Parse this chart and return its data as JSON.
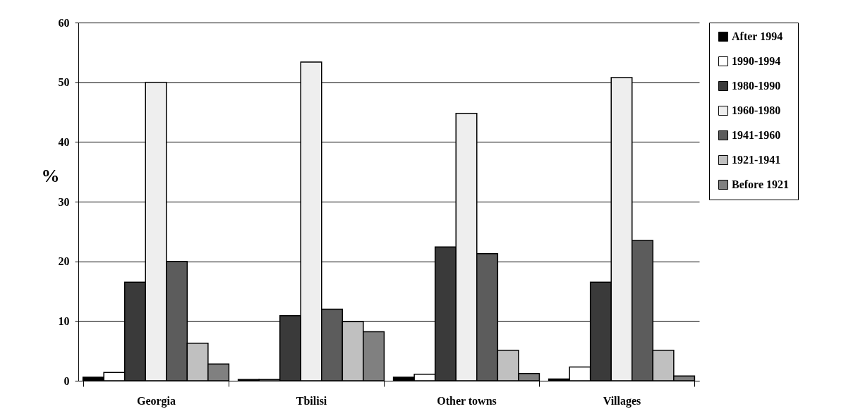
{
  "chart_data": {
    "type": "bar",
    "ylabel": "%",
    "categories": [
      "Georgia",
      "Tbilisi",
      "Other towns",
      "Villages"
    ],
    "series": [
      {
        "name": "After 1994",
        "color": "#000000",
        "values": [
          0.6,
          0.2,
          0.6,
          0.3
        ]
      },
      {
        "name": "1990-1994",
        "color": "#ffffff",
        "values": [
          1.4,
          0.2,
          1.1,
          2.3
        ]
      },
      {
        "name": "1980-1990",
        "color": "#3a3a3a",
        "values": [
          16.5,
          10.9,
          22.4,
          16.5
        ]
      },
      {
        "name": "1960-1980",
        "color": "#eeeeee",
        "values": [
          50,
          53.4,
          44.8,
          50.8
        ]
      },
      {
        "name": "1941-1960",
        "color": "#5c5c5c",
        "values": [
          20,
          12,
          21.3,
          23.5
        ]
      },
      {
        "name": "1921-1941",
        "color": "#c0c0c0",
        "values": [
          6.3,
          9.9,
          5.1,
          5.1
        ]
      },
      {
        "name": "Before 1921",
        "color": "#808080",
        "values": [
          2.8,
          8.2,
          1.2,
          0.8
        ]
      }
    ],
    "ylim": [
      0,
      60
    ],
    "yticks": [
      0,
      10,
      20,
      30,
      40,
      50,
      60
    ],
    "grid": "y",
    "legend": "right"
  }
}
